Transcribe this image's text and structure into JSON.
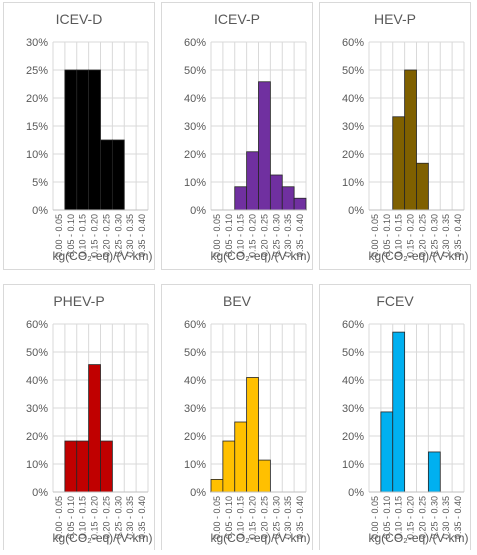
{
  "chart_data": [
    {
      "type": "bar",
      "title": "ICEV-D",
      "xlabel": "kg(CO₂-eq)/(V·km)",
      "ylim": [
        0,
        30
      ],
      "yticks": [
        "0%",
        "5%",
        "10%",
        "15%",
        "20%",
        "25%",
        "30%"
      ],
      "categories": [
        "0.00 - 0.05",
        "0.05 - 0.10",
        "0.10 - 0.15",
        "0.15 - 0.20",
        "0.20 - 0.25",
        "0.25 - 0.30",
        "0.30 - 0.35",
        "0.35 - 0.40"
      ],
      "values": [
        0,
        25,
        25,
        25,
        12.5,
        12.5,
        0,
        0
      ],
      "color": "#000000"
    },
    {
      "type": "bar",
      "title": "ICEV-P",
      "xlabel": "kg(CO₂-eq)/(V·km)",
      "ylim": [
        0,
        60
      ],
      "yticks": [
        "0%",
        "10%",
        "20%",
        "30%",
        "40%",
        "50%",
        "60%"
      ],
      "categories": [
        "0.00 - 0.05",
        "0.05 - 0.10",
        "0.10 - 0.15",
        "0.15 - 0.20",
        "0.20 - 0.25",
        "0.25 - 0.30",
        "0.30 - 0.35",
        "0.35 - 0.40"
      ],
      "values": [
        0,
        0,
        8.3,
        20.8,
        45.8,
        12.5,
        8.3,
        4.2
      ],
      "color": "#7030a0"
    },
    {
      "type": "bar",
      "title": "HEV-P",
      "xlabel": "kg(CO₂-eq)/(V·km)",
      "ylim": [
        0,
        60
      ],
      "yticks": [
        "0%",
        "10%",
        "20%",
        "30%",
        "40%",
        "50%",
        "60%"
      ],
      "categories": [
        "0.00 - 0.05",
        "0.05 - 0.10",
        "0.10 - 0.15",
        "0.15 - 0.20",
        "0.20 - 0.25",
        "0.25 - 0.30",
        "0.30 - 0.35",
        "0.35 - 0.40"
      ],
      "values": [
        0,
        0,
        33.3,
        50,
        16.7,
        0,
        0,
        0
      ],
      "color": "#7f6000"
    },
    {
      "type": "bar",
      "title": "PHEV-P",
      "xlabel": "kg(CO₂-eq)/(V·km)",
      "ylim": [
        0,
        60
      ],
      "yticks": [
        "0%",
        "10%",
        "20%",
        "30%",
        "40%",
        "50%",
        "60%"
      ],
      "categories": [
        "0.00 - 0.05",
        "0.05 - 0.10",
        "0.10 - 0.15",
        "0.15 - 0.20",
        "0.20 - 0.25",
        "0.25 - 0.30",
        "0.30 - 0.35",
        "0.35 - 0.40"
      ],
      "values": [
        0,
        18.2,
        18.2,
        45.5,
        18.2,
        0,
        0,
        0
      ],
      "color": "#c00000"
    },
    {
      "type": "bar",
      "title": "BEV",
      "xlabel": "kg(CO₂-eq)/(V·km)",
      "ylim": [
        0,
        60
      ],
      "yticks": [
        "0%",
        "10%",
        "20%",
        "30%",
        "40%",
        "50%",
        "60%"
      ],
      "categories": [
        "0.00 - 0.05",
        "0.05 - 0.10",
        "0.10 - 0.15",
        "0.15 - 0.20",
        "0.20 - 0.25",
        "0.25 - 0.30",
        "0.30 - 0.35",
        "0.35 - 0.40"
      ],
      "values": [
        4.5,
        18.2,
        25,
        40.9,
        11.4,
        0,
        0,
        0
      ],
      "color": "#ffc000"
    },
    {
      "type": "bar",
      "title": "FCEV",
      "xlabel": "kg(CO₂-eq)/(V·km)",
      "ylim": [
        0,
        60
      ],
      "yticks": [
        "0%",
        "10%",
        "20%",
        "30%",
        "40%",
        "50%",
        "60%"
      ],
      "categories": [
        "0.00 - 0.05",
        "0.05 - 0.10",
        "0.10 - 0.15",
        "0.15 - 0.20",
        "0.20 - 0.25",
        "0.25 - 0.30",
        "0.30 - 0.35",
        "0.35 - 0.40"
      ],
      "values": [
        0,
        28.6,
        57.1,
        0,
        0,
        14.3,
        0,
        0
      ],
      "color": "#00b0f0"
    }
  ]
}
